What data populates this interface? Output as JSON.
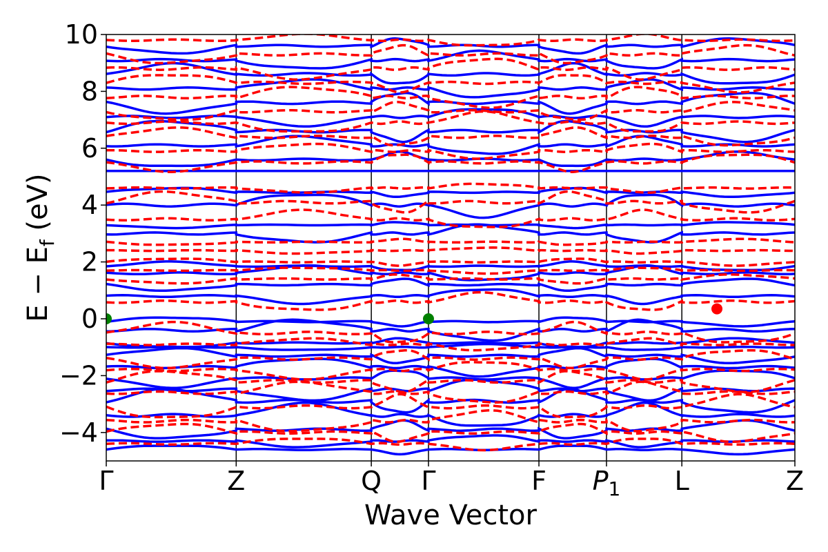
{
  "chart_data": {
    "type": "line",
    "title": "",
    "xlabel": "Wave Vector",
    "ylabel": "E − E_f (eV)",
    "ylabel_parts": {
      "main": "E  −  E",
      "sub": "f",
      "unit": " (eV)"
    },
    "ylim": [
      -5,
      10
    ],
    "yticks": [
      -4,
      -2,
      0,
      2,
      4,
      6,
      8,
      10
    ],
    "ytick_labels": [
      "−4",
      "−2",
      "0",
      "2",
      "4",
      "6",
      "8",
      "10"
    ],
    "kpath": [
      {
        "label": "Γ",
        "pos": 0.0
      },
      {
        "label": "Z",
        "pos": 1.0
      },
      {
        "label": "Q",
        "pos": 2.04
      },
      {
        "label": "Γ",
        "pos": 2.48
      },
      {
        "label": "F",
        "pos": 3.33
      },
      {
        "label": "P",
        "sub": "1",
        "italic": true,
        "pos": 3.85
      },
      {
        "label": "L",
        "pos": 4.43
      },
      {
        "label": "Z",
        "pos": 5.3
      }
    ],
    "xlim": [
      0,
      5.3
    ],
    "grid": false,
    "series": [
      {
        "style": "solid",
        "color": "#0000ff",
        "bands": [
          {
            "base": -4.6,
            "amp": 0.15
          },
          {
            "base": -4.3,
            "amp": 0.2
          },
          {
            "base": -3.9,
            "amp": 0.3
          },
          {
            "base": -3.4,
            "amp": 0.4
          },
          {
            "base": -2.9,
            "amp": 0.4
          },
          {
            "base": -2.5,
            "amp": 0.35
          },
          {
            "base": -2.1,
            "amp": 0.3
          },
          {
            "base": -1.7,
            "amp": 0.3
          },
          {
            "base": -1.3,
            "amp": 0.25
          },
          {
            "base": -1.0,
            "amp": 0.1
          },
          {
            "base": -0.85,
            "amp": 0.15
          },
          {
            "base": -0.4,
            "amp": 0.35
          },
          {
            "base": -0.1,
            "amp": 0.15
          },
          {
            "base": 0.8,
            "amp": 0.25
          },
          {
            "base": 1.2,
            "amp": 0.2
          },
          {
            "base": 1.6,
            "amp": 0.25
          },
          {
            "base": 1.85,
            "amp": 0.15
          },
          {
            "base": 3.0,
            "amp": 0.3
          },
          {
            "base": 3.3,
            "amp": 0.1
          },
          {
            "base": 4.0,
            "amp": 0.4
          },
          {
            "base": 4.45,
            "amp": 0.15
          },
          {
            "base": 5.2,
            "amp": 0.0
          },
          {
            "base": 5.6,
            "amp": 0.25
          },
          {
            "base": 6.1,
            "amp": 0.3
          },
          {
            "base": 6.6,
            "amp": 0.35
          },
          {
            "base": 7.1,
            "amp": 0.3
          },
          {
            "base": 7.6,
            "amp": 0.35
          },
          {
            "base": 8.1,
            "amp": 0.3
          },
          {
            "base": 8.6,
            "amp": 0.35
          },
          {
            "base": 9.1,
            "amp": 0.3
          },
          {
            "base": 9.6,
            "amp": 0.25
          }
        ]
      },
      {
        "style": "dashed",
        "color": "#ff0000",
        "bands": [
          {
            "base": -4.4,
            "amp": 0.2
          },
          {
            "base": -4.0,
            "amp": 0.3
          },
          {
            "base": -3.6,
            "amp": 0.35
          },
          {
            "base": -3.1,
            "amp": 0.4
          },
          {
            "base": -2.6,
            "amp": 0.35
          },
          {
            "base": -2.2,
            "amp": 0.35
          },
          {
            "base": -1.8,
            "amp": 0.3
          },
          {
            "base": -1.4,
            "amp": 0.3
          },
          {
            "base": -0.9,
            "amp": 0.2
          },
          {
            "base": -0.5,
            "amp": 0.35
          },
          {
            "base": 0.6,
            "amp": 0.3
          },
          {
            "base": 1.4,
            "amp": 0.15
          },
          {
            "base": 1.7,
            "amp": 0.1
          },
          {
            "base": 2.0,
            "amp": 0.12
          },
          {
            "base": 2.4,
            "amp": 0.1
          },
          {
            "base": 2.7,
            "amp": 0.1
          },
          {
            "base": 3.5,
            "amp": 0.3
          },
          {
            "base": 4.1,
            "amp": 0.35
          },
          {
            "base": 4.6,
            "amp": 0.15
          },
          {
            "base": 5.5,
            "amp": 0.3
          },
          {
            "base": 5.9,
            "amp": 0.25
          },
          {
            "base": 6.4,
            "amp": 0.3
          },
          {
            "base": 6.9,
            "amp": 0.35
          },
          {
            "base": 7.3,
            "amp": 0.3
          },
          {
            "base": 7.8,
            "amp": 0.35
          },
          {
            "base": 8.3,
            "amp": 0.3
          },
          {
            "base": 8.8,
            "amp": 0.35
          },
          {
            "base": 9.3,
            "amp": 0.3
          },
          {
            "base": 9.8,
            "amp": 0.2
          }
        ]
      }
    ],
    "markers": [
      {
        "name": "vbm-marker",
        "x": 0.0,
        "y": 0.0,
        "color": "#008000"
      },
      {
        "name": "vbm-marker",
        "x": 2.48,
        "y": 0.0,
        "color": "#008000"
      },
      {
        "name": "cbm-marker",
        "x": 4.7,
        "y": 0.35,
        "color": "#ff0000"
      }
    ]
  }
}
